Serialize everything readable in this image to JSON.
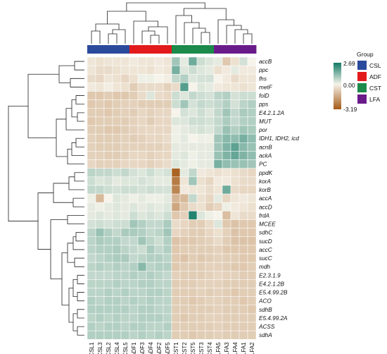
{
  "chart_data": {
    "type": "heatmap",
    "rows": [
      "accB",
      "ppc",
      "fhs",
      "metF",
      "folD",
      "pps",
      "E4.2.1.2A",
      "MUT",
      "por",
      "IDH1, IDH2, icd",
      "acnB",
      "ackA",
      "PC",
      "ppdK",
      "korA",
      "korB",
      "accA",
      "accD",
      "frdA",
      "MCEE",
      "sdhC",
      "sucD",
      "accC",
      "sucC",
      "mdh",
      "E2.3.1.9",
      "E4.2.1.2B",
      "E5.4.99.2B",
      "ACO",
      "sdhB",
      "E5.4.99.2A",
      "ACSS",
      "sdhA"
    ],
    "columns": [
      "CSL1",
      "CSL3",
      "CSL2",
      "CSL4",
      "CSL5",
      "ADF1",
      "ADF3",
      "ADF4",
      "ADF2",
      "ADF5",
      "CST1",
      "CST2",
      "CST5",
      "CST3",
      "CST4",
      "LFA5",
      "LFA3",
      "LFA4",
      "LFA1",
      "LFA2"
    ],
    "column_groups": [
      "CSL",
      "CSL",
      "CSL",
      "CSL",
      "CSL",
      "ADF",
      "ADF",
      "ADF",
      "ADF",
      "ADF",
      "CST",
      "CST",
      "CST",
      "CST",
      "CST",
      "LFA",
      "LFA",
      "LFA",
      "LFA",
      "LFA"
    ],
    "color_scale": {
      "min": -3.19,
      "mid": 0.0,
      "max": 2.69,
      "low_color": "#a45a16",
      "mid_color": "#f6f3ea",
      "high_color": "#127a66"
    },
    "legend_ticks": [
      "2.69",
      "0.00",
      "-3.19"
    ],
    "group_legend_title": "Group",
    "groups": [
      {
        "name": "CSL",
        "color": "#2b4a9c"
      },
      {
        "name": "ADF",
        "color": "#e31a1c"
      },
      {
        "name": "CST",
        "color": "#1b8a4a"
      },
      {
        "name": "LFA",
        "color": "#6a1b8a"
      }
    ],
    "values": [
      [
        -0.3,
        -0.4,
        -0.3,
        -0.3,
        -0.3,
        -0.2,
        -0.3,
        -0.3,
        -0.2,
        -0.3,
        1.0,
        0.2,
        1.6,
        0.5,
        0.3,
        0.2,
        -0.9,
        -0.4,
        0.4,
        0.0
      ],
      [
        -0.3,
        -0.5,
        -0.5,
        -0.4,
        -0.3,
        -0.3,
        -0.3,
        -0.4,
        -0.2,
        -0.3,
        1.5,
        0.3,
        0.5,
        0.3,
        0.2,
        -0.4,
        -0.2,
        0.2,
        -0.2,
        -0.2
      ],
      [
        -0.5,
        -0.6,
        -0.3,
        -0.4,
        -0.6,
        -0.4,
        0.1,
        0.1,
        0.0,
        -0.1,
        0.6,
        0.8,
        0.3,
        0.4,
        0.4,
        0.0,
        -0.2,
        -0.5,
        -0.3,
        -0.3
      ],
      [
        -0.2,
        -0.3,
        -0.1,
        -0.3,
        -0.4,
        -0.8,
        -0.5,
        -0.5,
        -0.5,
        -0.7,
        -0.5,
        1.9,
        0.0,
        0.3,
        0.2,
        -0.2,
        -0.3,
        -0.3,
        -0.4,
        -0.3
      ],
      [
        -0.9,
        -0.9,
        -0.8,
        -0.9,
        -0.9,
        -0.8,
        -0.5,
        0.3,
        -0.5,
        -0.6,
        0.5,
        0.3,
        0.6,
        0.5,
        0.4,
        0.7,
        0.8,
        0.4,
        0.5,
        0.5
      ],
      [
        -0.9,
        -0.8,
        -0.9,
        -0.8,
        -0.7,
        -0.7,
        -0.8,
        -0.8,
        -0.8,
        -0.8,
        0.5,
        1.0,
        0.4,
        0.6,
        0.5,
        0.6,
        0.8,
        0.4,
        0.7,
        0.8
      ],
      [
        -0.8,
        -0.8,
        -0.9,
        -0.8,
        -0.7,
        -0.8,
        -0.6,
        -0.7,
        -0.6,
        -0.6,
        0.0,
        0.4,
        0.3,
        0.5,
        0.3,
        0.6,
        1.0,
        0.6,
        0.9,
        0.8
      ],
      [
        -0.9,
        -0.8,
        -0.8,
        -0.8,
        -0.8,
        -0.7,
        -0.6,
        -0.8,
        -0.6,
        -0.6,
        0.3,
        0.3,
        0.5,
        0.5,
        0.4,
        0.6,
        0.9,
        0.6,
        0.8,
        0.8
      ],
      [
        -0.8,
        -0.8,
        -0.9,
        -0.9,
        -0.8,
        -0.7,
        -0.6,
        -0.6,
        -0.6,
        -0.6,
        0.1,
        0.2,
        0.3,
        0.4,
        0.3,
        0.6,
        1.1,
        0.8,
        1.0,
        0.9
      ],
      [
        -0.7,
        -0.8,
        -0.8,
        -0.8,
        -0.7,
        -0.8,
        -0.7,
        -0.6,
        -0.6,
        -0.5,
        0.1,
        0.2,
        0.0,
        0.1,
        0.1,
        1.0,
        1.3,
        1.2,
        1.5,
        1.2
      ],
      [
        -0.7,
        -0.8,
        -0.8,
        -0.8,
        -0.7,
        -0.7,
        -0.7,
        -0.7,
        -0.7,
        -0.6,
        0.2,
        0.2,
        0.2,
        0.2,
        0.2,
        1.0,
        1.4,
        1.8,
        1.3,
        1.1
      ],
      [
        -0.7,
        -0.7,
        -0.8,
        -0.8,
        -0.7,
        -0.6,
        -0.6,
        -0.7,
        -0.6,
        -0.6,
        0.2,
        0.3,
        0.1,
        0.2,
        0.2,
        1.1,
        1.4,
        1.7,
        1.4,
        1.2
      ],
      [
        -0.6,
        -0.7,
        -0.7,
        -0.7,
        -0.6,
        -0.6,
        -0.6,
        -0.7,
        -0.6,
        -0.5,
        0.3,
        0.2,
        0.1,
        0.2,
        0.2,
        1.5,
        1.2,
        1.1,
        1.1,
        1.0
      ],
      [
        0.7,
        0.6,
        0.6,
        0.5,
        0.6,
        0.4,
        0.3,
        0.5,
        0.3,
        0.4,
        -3.0,
        0.2,
        0.6,
        -0.2,
        -0.3,
        -0.4,
        -0.3,
        -0.4,
        -0.5,
        -0.6
      ],
      [
        0.5,
        0.3,
        0.4,
        0.2,
        0.3,
        0.3,
        0.4,
        0.3,
        0.2,
        0.2,
        -2.5,
        -0.3,
        1.0,
        -0.4,
        -0.6,
        -0.2,
        -0.2,
        -0.4,
        -0.5,
        -0.5
      ],
      [
        0.6,
        0.6,
        0.5,
        0.4,
        0.5,
        0.5,
        0.4,
        0.5,
        0.4,
        0.4,
        -2.3,
        -0.2,
        -0.3,
        -0.3,
        -0.5,
        -0.3,
        1.6,
        -0.5,
        -0.6,
        -0.6
      ],
      [
        0.1,
        -1.2,
        0.0,
        0.3,
        0.2,
        0.1,
        0.2,
        0.1,
        0.1,
        0.2,
        -1.3,
        -1.2,
        0.6,
        -0.4,
        -0.6,
        0.2,
        -0.6,
        -0.3,
        -0.2,
        -0.3
      ],
      [
        0.2,
        0.1,
        0.2,
        0.3,
        0.2,
        0.3,
        0.2,
        0.3,
        0.2,
        0.3,
        -1.6,
        -0.9,
        -0.5,
        -0.4,
        -0.8,
        -0.6,
        0.1,
        -0.2,
        -0.3,
        -0.4
      ],
      [
        0.2,
        0.3,
        0.2,
        0.3,
        0.2,
        0.5,
        0.3,
        0.4,
        0.3,
        0.5,
        -0.9,
        -0.7,
        2.5,
        0.3,
        0.1,
        0.0,
        -1.1,
        -0.3,
        -0.5,
        -0.5
      ],
      [
        0.4,
        0.5,
        0.4,
        0.5,
        0.5,
        1.0,
        0.8,
        0.6,
        0.6,
        0.9,
        -0.5,
        -0.6,
        -0.8,
        -0.8,
        -0.5,
        0.3,
        -0.9,
        -1.0,
        -0.9,
        -0.9
      ],
      [
        0.7,
        1.1,
        0.8,
        0.6,
        0.9,
        0.9,
        0.8,
        0.6,
        0.7,
        1.0,
        -0.6,
        -0.7,
        -0.8,
        -0.8,
        -0.6,
        -0.4,
        -0.7,
        -1.0,
        -0.9,
        -0.9
      ],
      [
        0.7,
        0.9,
        0.8,
        0.8,
        0.6,
        0.6,
        1.0,
        0.7,
        0.5,
        0.8,
        -1.0,
        -0.9,
        -0.9,
        -0.8,
        -0.7,
        -0.5,
        -0.8,
        -1.0,
        -1.0,
        -1.0
      ],
      [
        0.7,
        0.8,
        0.8,
        0.9,
        0.7,
        0.6,
        0.5,
        0.9,
        0.6,
        0.8,
        -0.9,
        -0.8,
        -0.8,
        -0.8,
        -0.8,
        -0.7,
        -0.9,
        -0.9,
        -0.9,
        -0.9
      ],
      [
        0.6,
        0.7,
        0.8,
        0.9,
        0.9,
        0.6,
        0.7,
        0.8,
        0.8,
        0.7,
        -0.9,
        -1.0,
        -0.8,
        -0.9,
        -0.8,
        -0.7,
        -0.8,
        -0.8,
        -0.9,
        -0.9
      ],
      [
        0.7,
        0.8,
        0.7,
        0.8,
        0.7,
        0.8,
        1.3,
        0.7,
        0.8,
        0.8,
        -0.9,
        -0.8,
        -0.8,
        -0.8,
        -0.7,
        -0.7,
        -0.8,
        -0.9,
        -0.9,
        -0.8
      ],
      [
        0.6,
        0.6,
        0.6,
        0.7,
        0.7,
        0.8,
        0.7,
        0.8,
        0.7,
        0.6,
        -0.7,
        -0.8,
        -0.8,
        -0.8,
        -0.7,
        -0.6,
        -0.7,
        -0.7,
        -0.8,
        -0.8
      ],
      [
        0.7,
        0.7,
        0.7,
        0.8,
        0.7,
        0.7,
        0.8,
        0.8,
        0.7,
        0.7,
        -0.8,
        -0.8,
        -0.8,
        -0.7,
        -0.7,
        -0.7,
        -0.8,
        -0.8,
        -0.8,
        -0.8
      ],
      [
        0.7,
        0.7,
        0.8,
        0.7,
        0.8,
        0.7,
        0.7,
        0.8,
        0.8,
        0.7,
        -0.8,
        -0.8,
        -0.8,
        -0.7,
        -0.8,
        -0.7,
        -0.8,
        -0.9,
        -0.8,
        -0.8
      ],
      [
        0.8,
        0.7,
        0.8,
        0.8,
        0.7,
        0.8,
        0.7,
        0.8,
        0.7,
        0.7,
        -0.8,
        -0.8,
        -0.9,
        -0.8,
        -0.7,
        -0.7,
        -0.8,
        -0.8,
        -0.9,
        -0.8
      ],
      [
        0.8,
        0.8,
        0.8,
        0.8,
        0.8,
        0.7,
        0.8,
        0.8,
        0.7,
        0.7,
        -0.8,
        -0.8,
        -0.8,
        -0.8,
        -0.8,
        -0.7,
        -0.8,
        -0.8,
        -0.8,
        -0.9
      ],
      [
        0.7,
        0.8,
        0.7,
        0.8,
        0.7,
        0.7,
        0.8,
        0.8,
        0.8,
        0.7,
        -0.8,
        -0.9,
        -0.8,
        -0.8,
        -0.7,
        -0.7,
        -0.8,
        -0.8,
        -0.8,
        -0.8
      ],
      [
        0.8,
        0.7,
        0.8,
        0.8,
        0.7,
        0.8,
        0.8,
        0.7,
        0.7,
        0.8,
        -0.8,
        -0.8,
        -0.8,
        -0.8,
        -0.8,
        -0.7,
        -0.8,
        -0.8,
        -0.8,
        -0.8
      ],
      [
        0.8,
        0.8,
        0.8,
        0.8,
        0.8,
        0.7,
        0.8,
        0.7,
        0.8,
        0.7,
        -0.8,
        -0.8,
        -0.9,
        -0.8,
        -0.8,
        -0.7,
        -0.8,
        -0.8,
        -0.8,
        -0.8
      ]
    ]
  }
}
